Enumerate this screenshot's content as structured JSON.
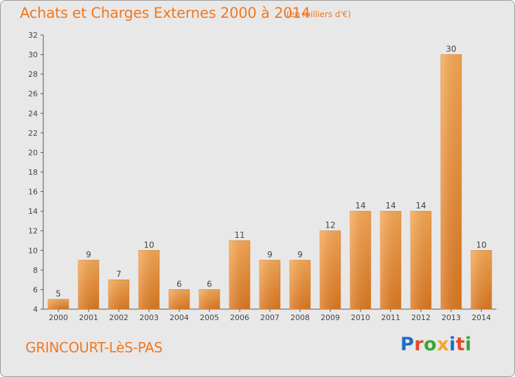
{
  "header": {
    "title": "Achats et Charges Externes 2000 à 2014",
    "subtitle": "(en milliers d'€)"
  },
  "footer": {
    "commune": "GRINCOURT-LèS-PAS",
    "brand": "Proxiti",
    "brand_colors": [
      "#1a6fc4",
      "#e8462a",
      "#3aa535",
      "#f5a623",
      "#1a6fc4",
      "#e8462a",
      "#3aa535"
    ]
  },
  "colors": {
    "accent": "#f07820",
    "bar_light": "#f7a44e",
    "bar_dark": "#e07b25",
    "plot_bg": "#e8e8e8"
  },
  "chart_data": {
    "type": "bar",
    "title": "Achats et Charges Externes 2000 à 2014",
    "subtitle": "(en milliers d'€)",
    "categories": [
      "2000",
      "2001",
      "2002",
      "2003",
      "2004",
      "2005",
      "2006",
      "2007",
      "2008",
      "2009",
      "2010",
      "2011",
      "2012",
      "2013",
      "2014"
    ],
    "values": [
      5,
      9,
      7,
      10,
      6,
      6,
      11,
      9,
      9,
      12,
      14,
      14,
      14,
      30,
      10
    ],
    "ylim": [
      4,
      32
    ],
    "yticks": [
      4,
      6,
      8,
      10,
      12,
      14,
      16,
      18,
      20,
      22,
      24,
      26,
      28,
      30,
      32
    ],
    "grid": false,
    "legend": "none",
    "data_labels": true
  }
}
